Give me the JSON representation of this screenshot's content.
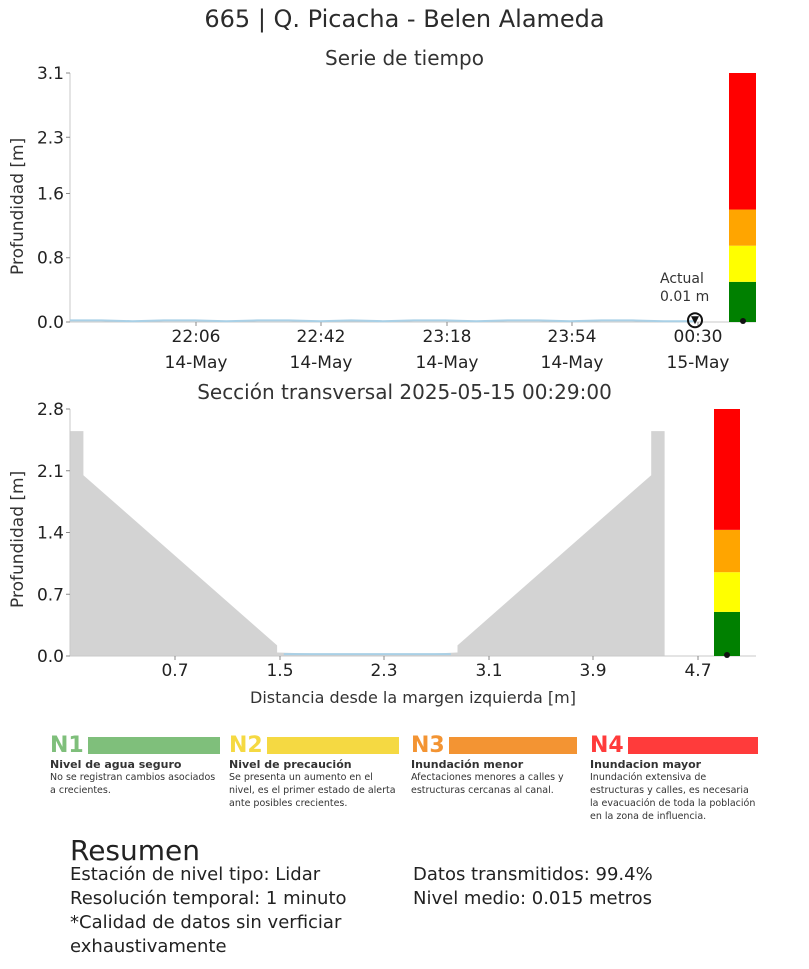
{
  "title": "665 | Q. Picacha - Belen Alameda",
  "chart_data": [
    {
      "type": "line",
      "title": "Serie de tiempo",
      "ylabel": "Profundidad [m]",
      "ylim": [
        0.0,
        3.1
      ],
      "yticks": [
        "0.0",
        "0.8",
        "1.6",
        "2.3",
        "3.1"
      ],
      "xticks": [
        {
          "time": "22:06",
          "date": "14-May"
        },
        {
          "time": "22:42",
          "date": "14-May"
        },
        {
          "time": "23:18",
          "date": "14-May"
        },
        {
          "time": "23:54",
          "date": "14-May"
        },
        {
          "time": "00:30",
          "date": "15-May"
        }
      ],
      "series": [
        {
          "values": [
            0.02,
            0.02,
            0.01,
            0.02,
            0.02,
            0.01,
            0.02,
            0.02,
            0.01,
            0.02,
            0.01,
            0.02,
            0.02,
            0.01,
            0.02,
            0.02,
            0.01,
            0.02,
            0.02,
            0.01,
            0.01
          ]
        }
      ],
      "annotation": {
        "label": "Actual",
        "value": "0.01 m"
      },
      "level_bar": [
        {
          "level": "N1",
          "from": 0.0,
          "to": 0.5,
          "color": "#008000"
        },
        {
          "level": "N2",
          "from": 0.5,
          "to": 0.95,
          "color": "#ffff00"
        },
        {
          "level": "N3",
          "from": 0.95,
          "to": 1.4,
          "color": "#ffa500"
        },
        {
          "level": "N4",
          "from": 1.4,
          "to": 3.1,
          "color": "#ff0000"
        }
      ],
      "current_level": 0.01
    },
    {
      "type": "area",
      "title": "Sección transversal 2025-05-15 00:29:00",
      "xlabel": "Distancia desde la margen izquierda [m]",
      "ylabel": "Profundidad [m]",
      "ylim": [
        0.0,
        2.8
      ],
      "xlim": [
        0.0,
        4.7
      ],
      "yticks": [
        "0.0",
        "0.7",
        "1.4",
        "2.1",
        "2.8"
      ],
      "xticks": [
        "0.7",
        "1.5",
        "2.3",
        "3.1",
        "3.9",
        "4.7"
      ],
      "profile": [
        {
          "x": 0.0,
          "y": 2.55
        },
        {
          "x": 0.1,
          "y": 2.55
        },
        {
          "x": 0.1,
          "y": 2.05
        },
        {
          "x": 1.55,
          "y": 0.12
        },
        {
          "x": 1.55,
          "y": 0.04
        },
        {
          "x": 2.0,
          "y": 0.02
        },
        {
          "x": 2.6,
          "y": 0.02
        },
        {
          "x": 2.9,
          "y": 0.04
        },
        {
          "x": 2.9,
          "y": 0.12
        },
        {
          "x": 4.35,
          "y": 2.05
        },
        {
          "x": 4.35,
          "y": 2.55
        },
        {
          "x": 4.45,
          "y": 2.55
        },
        {
          "x": 4.45,
          "y": 0.0
        }
      ],
      "water_level": 0.01,
      "level_bar": [
        {
          "level": "N1",
          "from": 0.0,
          "to": 0.5,
          "color": "#008000"
        },
        {
          "level": "N2",
          "from": 0.5,
          "to": 0.95,
          "color": "#ffff00"
        },
        {
          "level": "N3",
          "from": 0.95,
          "to": 1.43,
          "color": "#ffa500"
        },
        {
          "level": "N4",
          "from": 1.43,
          "to": 2.8,
          "color": "#ff0000"
        }
      ]
    }
  ],
  "legend": [
    {
      "code": "N1",
      "color": "#7fbf7b",
      "code_color": "#7fbf7b",
      "name": "Nivel de agua seguro",
      "desc": "No se registran cambios asociados a crecientes."
    },
    {
      "code": "N2",
      "color": "#f5d942",
      "code_color": "#f5d942",
      "name": "Nivel de precaución",
      "desc": "Se presenta un aumento en el nivel, es el primer estado de alerta ante posibles crecientes."
    },
    {
      "code": "N3",
      "color": "#f39433",
      "code_color": "#f39433",
      "name": "Inundación menor",
      "desc": "Afectaciones menores a calles y estructuras cercanas al canal."
    },
    {
      "code": "N4",
      "color": "#ff3b3b",
      "code_color": "#ff3b3b",
      "name": "Inundacion mayor",
      "desc": "Inundación extensiva de estructuras y calles, es necesaria la evacuación de toda la población en la zona de influencia."
    }
  ],
  "summary": {
    "title": "Resumen",
    "left": [
      "Estación de nivel tipo: Lidar",
      "Resolución temporal: 1 minuto",
      "*Calidad de datos sin verficiar exhaustivamente"
    ],
    "right": [
      "Datos transmitidos: 99.4%",
      "Nivel medio: 0.015 metros"
    ]
  }
}
